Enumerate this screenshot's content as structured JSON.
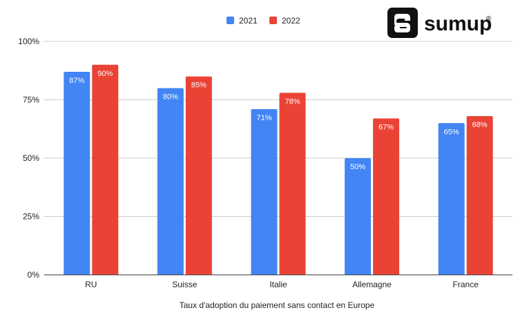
{
  "brand": {
    "name": "sumup",
    "registered_mark": "®"
  },
  "chart_data": {
    "type": "bar",
    "title": "",
    "xlabel": "Taux d'adoption du paiement sans contact en Europe",
    "ylabel": "",
    "categories": [
      "RU",
      "Suisse",
      "Italie",
      "Allemagne",
      "France"
    ],
    "series": [
      {
        "name": "2021",
        "values": [
          87,
          80,
          71,
          50,
          65
        ],
        "labels": [
          "87%",
          "80%",
          "71%",
          "50%",
          "65%"
        ],
        "color": "#4285f4"
      },
      {
        "name": "2022",
        "values": [
          90,
          85,
          78,
          67,
          68
        ],
        "labels": [
          "90%",
          "85%",
          "78%",
          "67%",
          "68%"
        ],
        "color": "#ea4335"
      }
    ],
    "ylim": [
      0,
      100
    ],
    "yticks": [
      0,
      25,
      50,
      75,
      100
    ],
    "ytick_labels": [
      "0%",
      "25%",
      "50%",
      "75%",
      "100%"
    ],
    "grid": true,
    "legend_position": "top-center"
  }
}
